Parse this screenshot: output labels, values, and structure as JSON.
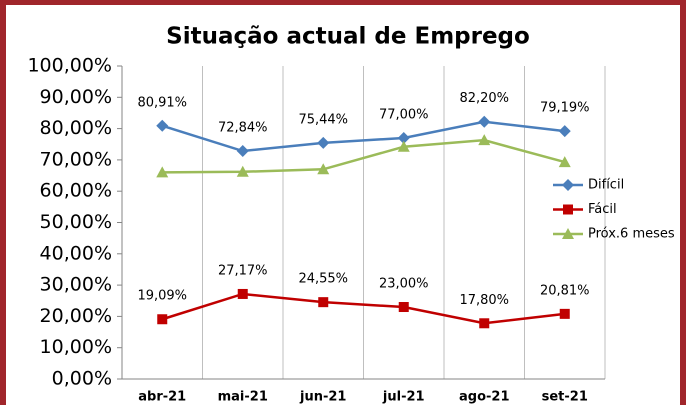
{
  "chart_data": {
    "type": "line",
    "title": "Situação actual de Emprego",
    "categories": [
      "abr-21",
      "mai-21",
      "jun-21",
      "jul-21",
      "ago-21",
      "set-21"
    ],
    "series": [
      {
        "name": "Difícil",
        "color": "#4a7ebb",
        "marker": "diamond",
        "values": [
          80.91,
          72.84,
          75.44,
          77.0,
          82.2,
          79.19
        ],
        "value_labels": [
          "80,91%",
          "72,84%",
          "75,44%",
          "77,00%",
          "82,20%",
          "79,19%"
        ]
      },
      {
        "name": "Fácil",
        "color": "#c00000",
        "marker": "square",
        "values": [
          19.09,
          27.17,
          24.55,
          23.0,
          17.8,
          20.81
        ],
        "value_labels": [
          "19,09%",
          "27,17%",
          "24,55%",
          "23,00%",
          "17,80%",
          "20,81%"
        ]
      },
      {
        "name": "Próx.6 meses",
        "color": "#9bbb59",
        "marker": "triangle",
        "values": [
          66.0,
          66.2,
          67.0,
          74.2,
          76.3,
          69.3
        ]
      }
    ],
    "ylim": [
      0,
      100
    ],
    "yticks": [
      {
        "value": 0,
        "label": "0,00%"
      },
      {
        "value": 10,
        "label": "10,00%"
      },
      {
        "value": 20,
        "label": "20,00%"
      },
      {
        "value": 30,
        "label": "30,00%"
      },
      {
        "value": 40,
        "label": "40,00%"
      },
      {
        "value": 50,
        "label": "50,00%"
      },
      {
        "value": 60,
        "label": "60,00%"
      },
      {
        "value": 70,
        "label": "70,00%"
      },
      {
        "value": 80,
        "label": "80,00%"
      },
      {
        "value": 90,
        "label": "90,00%"
      },
      {
        "value": 100,
        "label": "100,00%"
      }
    ],
    "legend": "right"
  }
}
